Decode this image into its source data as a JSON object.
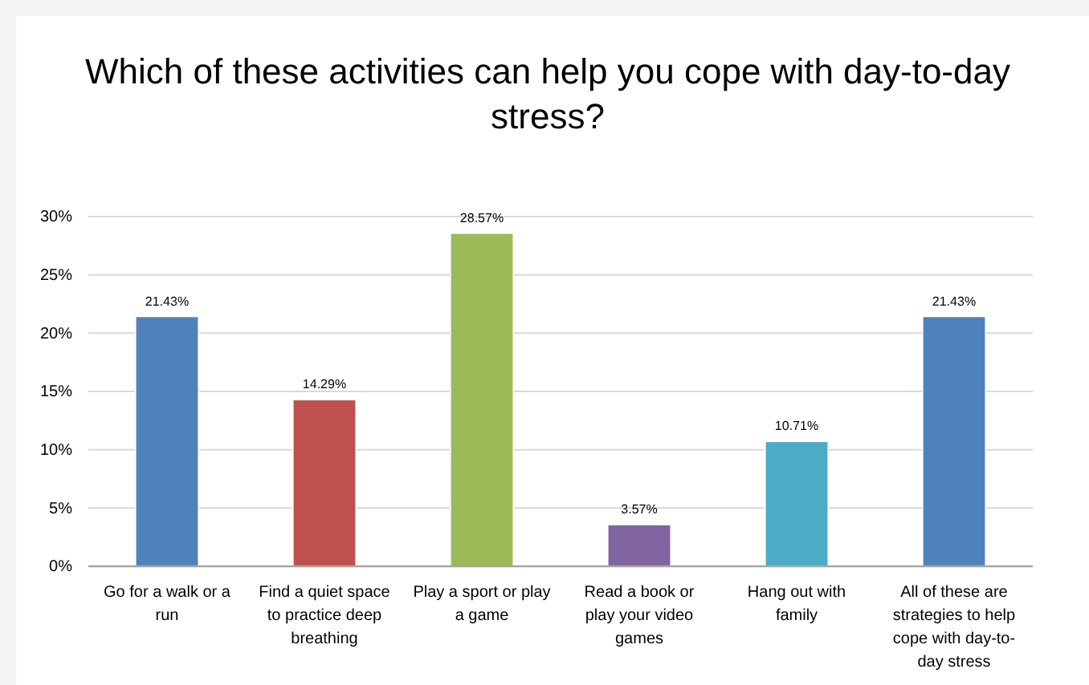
{
  "chart_data": {
    "type": "bar",
    "title": "Which of these activities can help you cope with day-to-day stress?",
    "categories": [
      "Go for a walk or a run",
      "Find a quiet space to practice deep breathing",
      "Play a sport or play a game",
      "Read a book or play your video games",
      "Hang out with family",
      "All of these are strategies to help cope with day-to-day stress"
    ],
    "values": [
      21.43,
      14.29,
      28.57,
      3.57,
      10.71,
      21.43
    ],
    "colors": [
      "#4f81bd",
      "#c0504d",
      "#9bbb59",
      "#8064a2",
      "#4bacc6",
      "#4f81bd"
    ],
    "value_labels": [
      "21.43%",
      "14.29%",
      "28.57%",
      "3.57%",
      "10.71%",
      "21.43%"
    ],
    "ylim": [
      0,
      30
    ],
    "yticks": [
      {
        "value": 0,
        "label": "0%"
      },
      {
        "value": 5,
        "label": "5%"
      },
      {
        "value": 10,
        "label": "10%"
      },
      {
        "value": 15,
        "label": "15%"
      },
      {
        "value": 20,
        "label": "20%"
      },
      {
        "value": 25,
        "label": "25%"
      },
      {
        "value": 30,
        "label": "30%"
      }
    ],
    "grid": "y"
  }
}
